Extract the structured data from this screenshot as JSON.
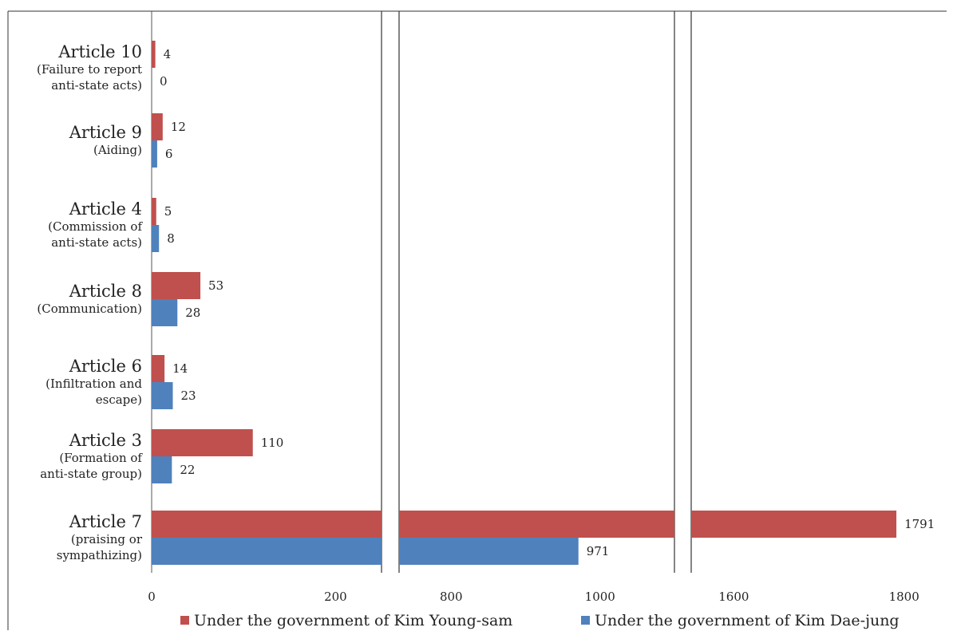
{
  "chart_data": {
    "type": "bar",
    "orientation": "horizontal",
    "broken_x_axis": true,
    "categories": [
      {
        "title": "Article 10",
        "subtitle": [
          "(Failure to report",
          "anti-state acts)"
        ]
      },
      {
        "title": "Article 9",
        "subtitle": [
          "(Aiding)"
        ]
      },
      {
        "title": "Article 4",
        "subtitle": [
          "(Commission of",
          "anti-state acts)"
        ]
      },
      {
        "title": "Article 8",
        "subtitle": [
          "(Communication)"
        ]
      },
      {
        "title": "Article 6",
        "subtitle": [
          "(Infiltration and",
          "escape)"
        ]
      },
      {
        "title": "Article 3",
        "subtitle": [
          "(Formation of",
          "anti-state group)"
        ]
      },
      {
        "title": "Article 7",
        "subtitle": [
          "(praising or",
          "sympathizing)"
        ]
      }
    ],
    "series": [
      {
        "name": "Under the government of Kim Young-sam",
        "color": "#c0504d",
        "values": [
          4,
          12,
          5,
          53,
          14,
          110,
          1791
        ]
      },
      {
        "name": "Under the government of Kim Dae-jung",
        "color": "#4f81bd",
        "values": [
          0,
          6,
          8,
          28,
          23,
          22,
          971
        ]
      }
    ],
    "segments": [
      {
        "range": [
          0,
          250
        ],
        "ticks": [
          0,
          200
        ]
      },
      {
        "range": [
          730,
          1100
        ],
        "ticks": [
          800,
          1000
        ]
      },
      {
        "range": [
          1550,
          1850
        ],
        "ticks": [
          1600,
          1800
        ]
      }
    ],
    "tick_labels": [
      "0",
      "200",
      "800",
      "1000",
      "1600",
      "1800"
    ],
    "legend_position": "bottom"
  }
}
